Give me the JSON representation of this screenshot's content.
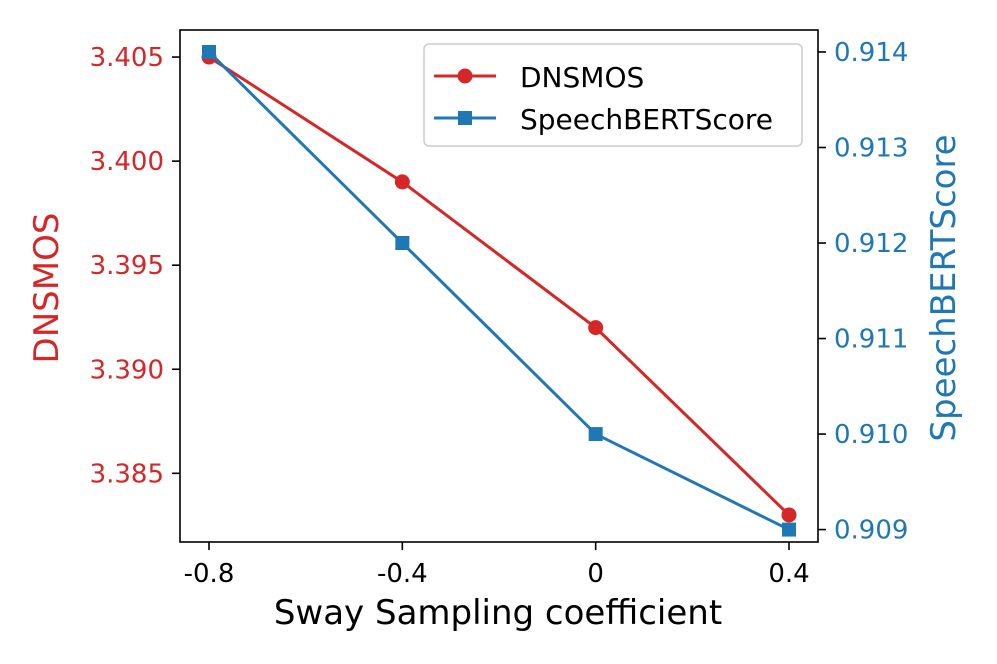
{
  "colors": {
    "dnsmos": "#d62728",
    "speechbertscore": "#1f77b4",
    "axis": "#000000",
    "legend_border": "#cccccc"
  },
  "chart_data": {
    "type": "line",
    "xlabel": "Sway Sampling coefficient",
    "x": [
      -0.8,
      -0.4,
      0,
      0.4
    ],
    "x_ticks": [
      {
        "value": -0.8,
        "label": "-0.8"
      },
      {
        "value": -0.4,
        "label": "-0.4"
      },
      {
        "value": 0,
        "label": "0"
      },
      {
        "value": 0.4,
        "label": "0.4"
      }
    ],
    "xlim": [
      -0.86,
      0.46
    ],
    "left_axis": {
      "label": "DNSMOS",
      "ylim": [
        3.3817,
        3.4063
      ],
      "ticks": [
        {
          "value": 3.385,
          "label": "3.385"
        },
        {
          "value": 3.39,
          "label": "3.390"
        },
        {
          "value": 3.395,
          "label": "3.395"
        },
        {
          "value": 3.4,
          "label": "3.400"
        },
        {
          "value": 3.405,
          "label": "3.405"
        }
      ]
    },
    "right_axis": {
      "label": "SpeechBERTScore",
      "ylim": [
        0.90887,
        0.91423
      ],
      "ticks": [
        {
          "value": 0.909,
          "label": "0.909"
        },
        {
          "value": 0.91,
          "label": "0.910"
        },
        {
          "value": 0.911,
          "label": "0.911"
        },
        {
          "value": 0.912,
          "label": "0.912"
        },
        {
          "value": 0.913,
          "label": "0.913"
        },
        {
          "value": 0.914,
          "label": "0.914"
        }
      ]
    },
    "series": [
      {
        "name": "DNSMOS",
        "axis": "left",
        "marker": "circle",
        "values": [
          3.405,
          3.399,
          3.392,
          3.383
        ]
      },
      {
        "name": "SpeechBERTScore",
        "axis": "right",
        "marker": "square",
        "values": [
          0.914,
          0.912,
          0.91,
          0.909
        ]
      }
    ],
    "legend_position": "top-right"
  }
}
